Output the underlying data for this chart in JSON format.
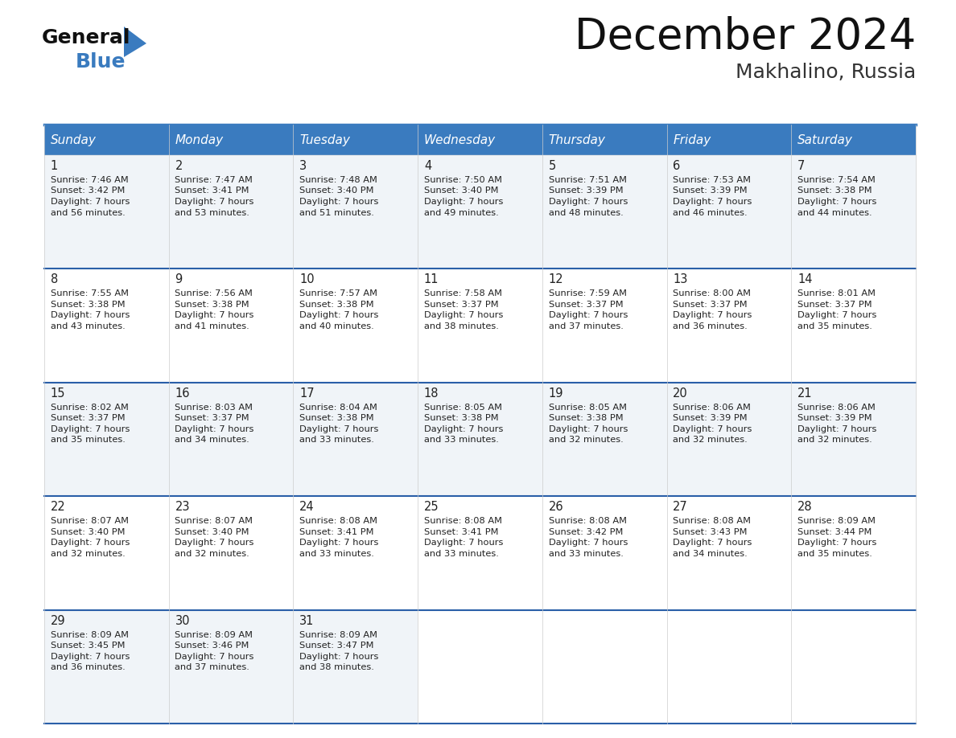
{
  "title": "December 2024",
  "subtitle": "Makhalino, Russia",
  "header_color": "#3a7bbf",
  "header_text_color": "#ffffff",
  "cell_bg_colors": [
    "#f0f4f8",
    "#ffffff"
  ],
  "day_names": [
    "Sunday",
    "Monday",
    "Tuesday",
    "Wednesday",
    "Thursday",
    "Friday",
    "Saturday"
  ],
  "days": [
    {
      "day": 1,
      "col": 0,
      "row": 0,
      "sunrise": "7:46 AM",
      "sunset": "3:42 PM",
      "daylight_h": "7 hours",
      "daylight_m": "and 56 minutes."
    },
    {
      "day": 2,
      "col": 1,
      "row": 0,
      "sunrise": "7:47 AM",
      "sunset": "3:41 PM",
      "daylight_h": "7 hours",
      "daylight_m": "and 53 minutes."
    },
    {
      "day": 3,
      "col": 2,
      "row": 0,
      "sunrise": "7:48 AM",
      "sunset": "3:40 PM",
      "daylight_h": "7 hours",
      "daylight_m": "and 51 minutes."
    },
    {
      "day": 4,
      "col": 3,
      "row": 0,
      "sunrise": "7:50 AM",
      "sunset": "3:40 PM",
      "daylight_h": "7 hours",
      "daylight_m": "and 49 minutes."
    },
    {
      "day": 5,
      "col": 4,
      "row": 0,
      "sunrise": "7:51 AM",
      "sunset": "3:39 PM",
      "daylight_h": "7 hours",
      "daylight_m": "and 48 minutes."
    },
    {
      "day": 6,
      "col": 5,
      "row": 0,
      "sunrise": "7:53 AM",
      "sunset": "3:39 PM",
      "daylight_h": "7 hours",
      "daylight_m": "and 46 minutes."
    },
    {
      "day": 7,
      "col": 6,
      "row": 0,
      "sunrise": "7:54 AM",
      "sunset": "3:38 PM",
      "daylight_h": "7 hours",
      "daylight_m": "and 44 minutes."
    },
    {
      "day": 8,
      "col": 0,
      "row": 1,
      "sunrise": "7:55 AM",
      "sunset": "3:38 PM",
      "daylight_h": "7 hours",
      "daylight_m": "and 43 minutes."
    },
    {
      "day": 9,
      "col": 1,
      "row": 1,
      "sunrise": "7:56 AM",
      "sunset": "3:38 PM",
      "daylight_h": "7 hours",
      "daylight_m": "and 41 minutes."
    },
    {
      "day": 10,
      "col": 2,
      "row": 1,
      "sunrise": "7:57 AM",
      "sunset": "3:38 PM",
      "daylight_h": "7 hours",
      "daylight_m": "and 40 minutes."
    },
    {
      "day": 11,
      "col": 3,
      "row": 1,
      "sunrise": "7:58 AM",
      "sunset": "3:37 PM",
      "daylight_h": "7 hours",
      "daylight_m": "and 38 minutes."
    },
    {
      "day": 12,
      "col": 4,
      "row": 1,
      "sunrise": "7:59 AM",
      "sunset": "3:37 PM",
      "daylight_h": "7 hours",
      "daylight_m": "and 37 minutes."
    },
    {
      "day": 13,
      "col": 5,
      "row": 1,
      "sunrise": "8:00 AM",
      "sunset": "3:37 PM",
      "daylight_h": "7 hours",
      "daylight_m": "and 36 minutes."
    },
    {
      "day": 14,
      "col": 6,
      "row": 1,
      "sunrise": "8:01 AM",
      "sunset": "3:37 PM",
      "daylight_h": "7 hours",
      "daylight_m": "and 35 minutes."
    },
    {
      "day": 15,
      "col": 0,
      "row": 2,
      "sunrise": "8:02 AM",
      "sunset": "3:37 PM",
      "daylight_h": "7 hours",
      "daylight_m": "and 35 minutes."
    },
    {
      "day": 16,
      "col": 1,
      "row": 2,
      "sunrise": "8:03 AM",
      "sunset": "3:37 PM",
      "daylight_h": "7 hours",
      "daylight_m": "and 34 minutes."
    },
    {
      "day": 17,
      "col": 2,
      "row": 2,
      "sunrise": "8:04 AM",
      "sunset": "3:38 PM",
      "daylight_h": "7 hours",
      "daylight_m": "and 33 minutes."
    },
    {
      "day": 18,
      "col": 3,
      "row": 2,
      "sunrise": "8:05 AM",
      "sunset": "3:38 PM",
      "daylight_h": "7 hours",
      "daylight_m": "and 33 minutes."
    },
    {
      "day": 19,
      "col": 4,
      "row": 2,
      "sunrise": "8:05 AM",
      "sunset": "3:38 PM",
      "daylight_h": "7 hours",
      "daylight_m": "and 32 minutes."
    },
    {
      "day": 20,
      "col": 5,
      "row": 2,
      "sunrise": "8:06 AM",
      "sunset": "3:39 PM",
      "daylight_h": "7 hours",
      "daylight_m": "and 32 minutes."
    },
    {
      "day": 21,
      "col": 6,
      "row": 2,
      "sunrise": "8:06 AM",
      "sunset": "3:39 PM",
      "daylight_h": "7 hours",
      "daylight_m": "and 32 minutes."
    },
    {
      "day": 22,
      "col": 0,
      "row": 3,
      "sunrise": "8:07 AM",
      "sunset": "3:40 PM",
      "daylight_h": "7 hours",
      "daylight_m": "and 32 minutes."
    },
    {
      "day": 23,
      "col": 1,
      "row": 3,
      "sunrise": "8:07 AM",
      "sunset": "3:40 PM",
      "daylight_h": "7 hours",
      "daylight_m": "and 32 minutes."
    },
    {
      "day": 24,
      "col": 2,
      "row": 3,
      "sunrise": "8:08 AM",
      "sunset": "3:41 PM",
      "daylight_h": "7 hours",
      "daylight_m": "and 33 minutes."
    },
    {
      "day": 25,
      "col": 3,
      "row": 3,
      "sunrise": "8:08 AM",
      "sunset": "3:41 PM",
      "daylight_h": "7 hours",
      "daylight_m": "and 33 minutes."
    },
    {
      "day": 26,
      "col": 4,
      "row": 3,
      "sunrise": "8:08 AM",
      "sunset": "3:42 PM",
      "daylight_h": "7 hours",
      "daylight_m": "and 33 minutes."
    },
    {
      "day": 27,
      "col": 5,
      "row": 3,
      "sunrise": "8:08 AM",
      "sunset": "3:43 PM",
      "daylight_h": "7 hours",
      "daylight_m": "and 34 minutes."
    },
    {
      "day": 28,
      "col": 6,
      "row": 3,
      "sunrise": "8:09 AM",
      "sunset": "3:44 PM",
      "daylight_h": "7 hours",
      "daylight_m": "and 35 minutes."
    },
    {
      "day": 29,
      "col": 0,
      "row": 4,
      "sunrise": "8:09 AM",
      "sunset": "3:45 PM",
      "daylight_h": "7 hours",
      "daylight_m": "and 36 minutes."
    },
    {
      "day": 30,
      "col": 1,
      "row": 4,
      "sunrise": "8:09 AM",
      "sunset": "3:46 PM",
      "daylight_h": "7 hours",
      "daylight_m": "and 37 minutes."
    },
    {
      "day": 31,
      "col": 2,
      "row": 4,
      "sunrise": "8:09 AM",
      "sunset": "3:47 PM",
      "daylight_h": "7 hours",
      "daylight_m": "and 38 minutes."
    }
  ],
  "num_rows": 5,
  "border_color": "#3a7bbf",
  "sep_line_color": "#2a5fa8",
  "text_color": "#222222",
  "logo_general_color": "#111111",
  "logo_blue_color": "#3a7bbf"
}
